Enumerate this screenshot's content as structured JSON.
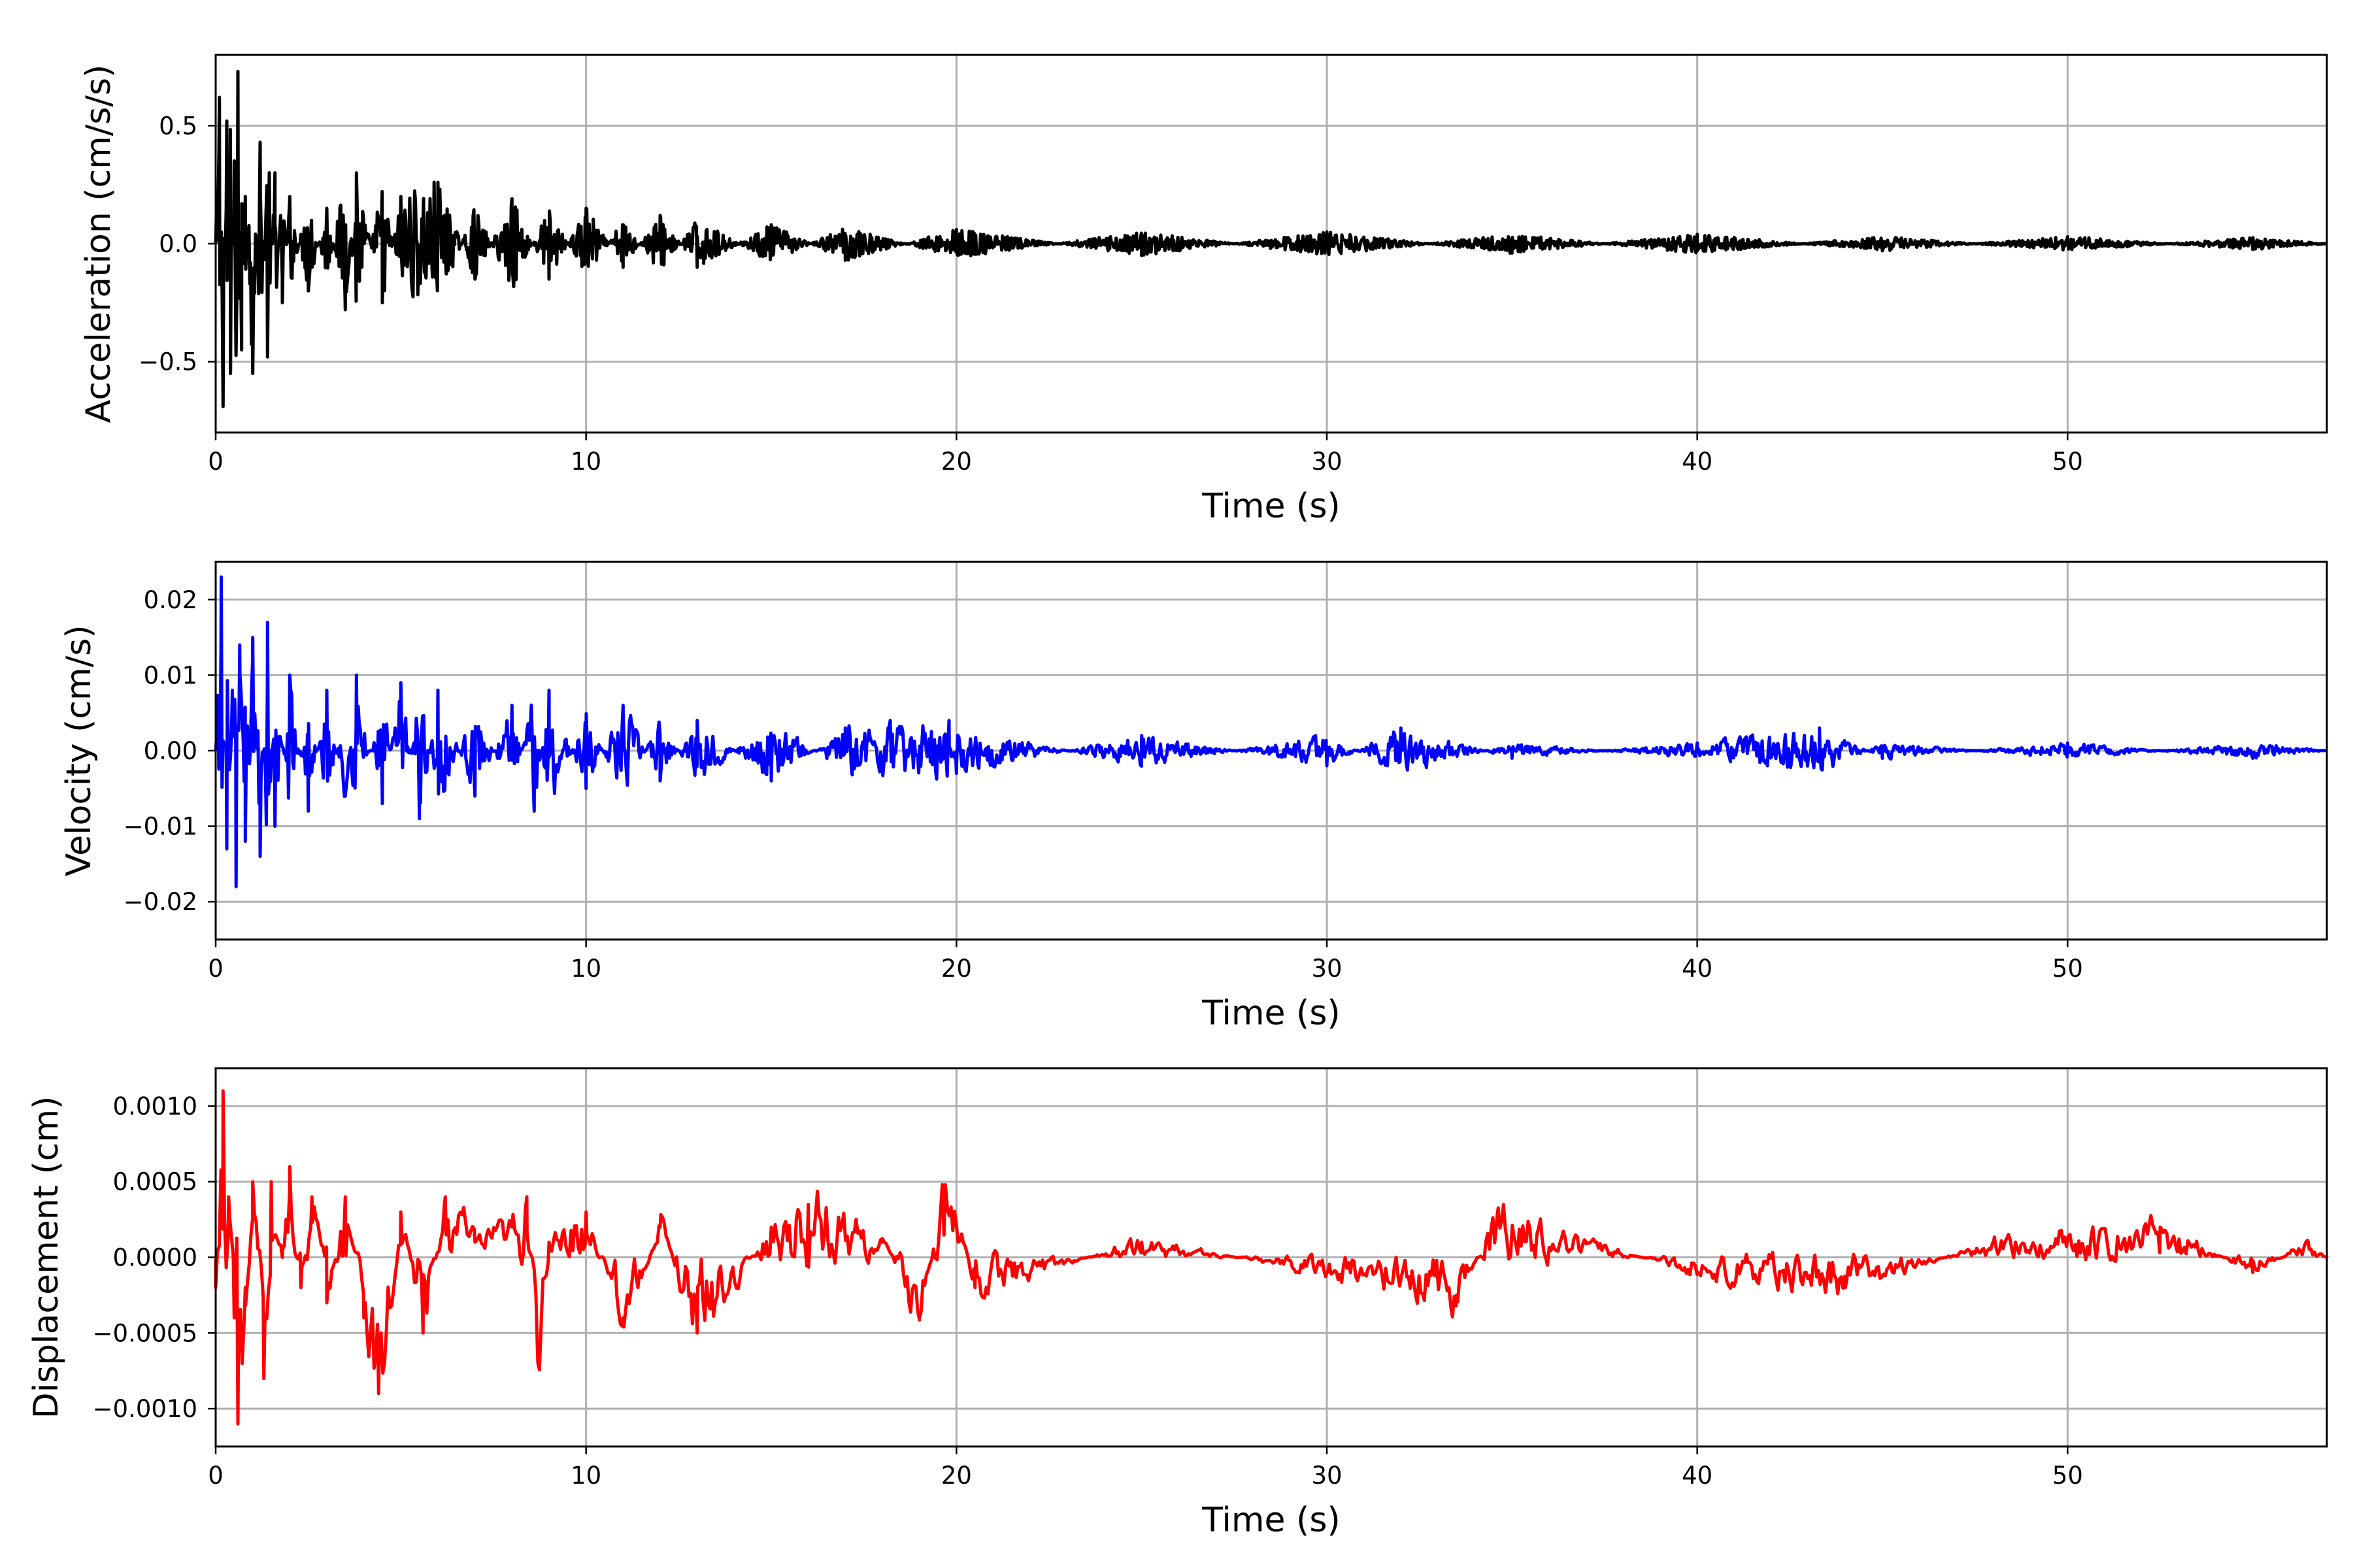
{
  "chart_data": [
    {
      "type": "line",
      "title": "",
      "xlabel": "Time (s)",
      "ylabel": "Acceleration (cm/s/s)",
      "xlim": [
        0,
        57
      ],
      "ylim": [
        -0.8,
        0.8
      ],
      "xticks": [
        0,
        10,
        20,
        30,
        40,
        50
      ],
      "xtick_labels": [
        "0",
        "10",
        "20",
        "30",
        "40",
        "50"
      ],
      "yticks": [
        -0.5,
        0.0,
        0.5
      ],
      "ytick_labels": [
        "−0.5",
        "0.0",
        "0.5"
      ],
      "grid": true,
      "color": "#000000",
      "series": [
        {
          "x": [
            0,
            0.1,
            0.2,
            0.3,
            0.4,
            0.5,
            0.6,
            0.7,
            0.8,
            1.0,
            1.2,
            1.4,
            1.6,
            1.8,
            2.0,
            2.5,
            3.0,
            3.5,
            3.8,
            4.5,
            5.0,
            6.0,
            7.0,
            8.0,
            9.0,
            10.0,
            11.0,
            12.0,
            13.0,
            15.0,
            17.0,
            20.0,
            25.0,
            30.0,
            35.0,
            40.0,
            45.0,
            50.0,
            55.0,
            57.0
          ],
          "y": [
            0.0,
            0.62,
            -0.69,
            0.52,
            -0.55,
            0.35,
            0.73,
            -0.45,
            0.2,
            -0.55,
            0.43,
            -0.48,
            0.3,
            -0.25,
            0.2,
            -0.2,
            0.15,
            -0.28,
            0.3,
            -0.25,
            0.2,
            0.26,
            -0.15,
            0.19,
            -0.15,
            0.15,
            -0.1,
            0.12,
            -0.1,
            0.08,
            -0.07,
            0.06,
            -0.05,
            0.05,
            -0.04,
            0.04,
            -0.03,
            0.03,
            -0.025,
            0.0
          ]
        }
      ]
    },
    {
      "type": "line",
      "title": "",
      "xlabel": "Time (s)",
      "ylabel": "Velocity (cm/s)",
      "xlim": [
        0,
        57
      ],
      "ylim": [
        -0.025,
        0.025
      ],
      "xticks": [
        0,
        10,
        20,
        30,
        40,
        50
      ],
      "xtick_labels": [
        "0",
        "10",
        "20",
        "30",
        "40",
        "50"
      ],
      "yticks": [
        -0.02,
        -0.01,
        0.0,
        0.01,
        0.02
      ],
      "ytick_labels": [
        "−0.02",
        "−0.01",
        "0.00",
        "0.01",
        "0.02"
      ],
      "grid": true,
      "color": "#0000ff",
      "series": [
        {
          "x": [
            0,
            0.15,
            0.3,
            0.45,
            0.55,
            0.65,
            0.8,
            1.0,
            1.2,
            1.4,
            1.6,
            2.0,
            2.5,
            3.0,
            3.5,
            3.8,
            4.5,
            5.0,
            5.5,
            6.0,
            7.0,
            8.0,
            8.6,
            9.0,
            10.0,
            11.0,
            12.0,
            13.0,
            15.0,
            17.0,
            19.8,
            20.0,
            25.0,
            30.0,
            32.0,
            35.0,
            40.0,
            43.3,
            45.0,
            50.0,
            55.0,
            57.0
          ],
          "y": [
            0.0,
            0.023,
            -0.013,
            0.008,
            -0.018,
            0.014,
            -0.012,
            0.015,
            -0.014,
            0.017,
            -0.01,
            0.01,
            -0.008,
            0.008,
            -0.006,
            0.01,
            -0.007,
            0.009,
            -0.009,
            0.008,
            -0.006,
            0.006,
            -0.008,
            0.008,
            -0.005,
            0.006,
            -0.004,
            0.004,
            -0.004,
            0.003,
            0.004,
            -0.003,
            0.002,
            -0.002,
            0.003,
            -0.001,
            0.001,
            0.003,
            -0.001,
            0.001,
            -0.001,
            0.0
          ]
        }
      ]
    },
    {
      "type": "line",
      "title": "",
      "xlabel": "Time (s)",
      "ylabel": "Displacement (cm)",
      "xlim": [
        0,
        57
      ],
      "ylim": [
        -0.00125,
        0.00125
      ],
      "xticks": [
        0,
        10,
        20,
        30,
        40,
        50
      ],
      "xtick_labels": [
        "0",
        "10",
        "20",
        "30",
        "40",
        "50"
      ],
      "yticks": [
        -0.001,
        -0.0005,
        0.0,
        0.0005,
        0.001
      ],
      "ytick_labels": [
        "−0.0010",
        "−0.0005",
        "0.0000",
        "0.0005",
        "0.0010"
      ],
      "grid": true,
      "color": "#ff0000",
      "series": [
        {
          "x": [
            0,
            0.2,
            0.35,
            0.5,
            0.6,
            0.8,
            1.0,
            1.3,
            1.5,
            1.8,
            2.0,
            2.3,
            2.6,
            3.0,
            3.5,
            4.0,
            4.4,
            5.0,
            5.6,
            6.2,
            7.0,
            8.0,
            8.4,
            8.7,
            9.0,
            10.0,
            11.0,
            12.0,
            13.0,
            15.0,
            16.0,
            18.0,
            19.0,
            19.7,
            20.5,
            25.0,
            30.0,
            33.5,
            34.6,
            37.0,
            40.0,
            44.0,
            48.0,
            52.5,
            55.0,
            56.5,
            57.0
          ],
          "y": [
            -0.0002,
            0.0011,
            0.0004,
            -0.0004,
            -0.0011,
            -0.0002,
            0.0005,
            -0.0008,
            0.0005,
            0.0,
            0.0006,
            -0.0002,
            0.0004,
            -0.0003,
            0.0004,
            -0.0004,
            -0.0009,
            0.0003,
            -0.0005,
            0.0004,
            0.0001,
            0.0002,
            0.0004,
            -0.0007,
            0.0001,
            0.0003,
            -0.0004,
            0.0002,
            -0.0005,
            0.0002,
            0.00035,
            0.0001,
            -0.0004,
            0.00048,
            -0.0002,
            0.0001,
            -0.0001,
            -0.00025,
            0.00028,
            0.0001,
            -0.0001,
            -0.0002,
            0.0001,
            0.0002,
            -0.0001,
            0.0001,
            0.0
          ]
        }
      ]
    }
  ]
}
